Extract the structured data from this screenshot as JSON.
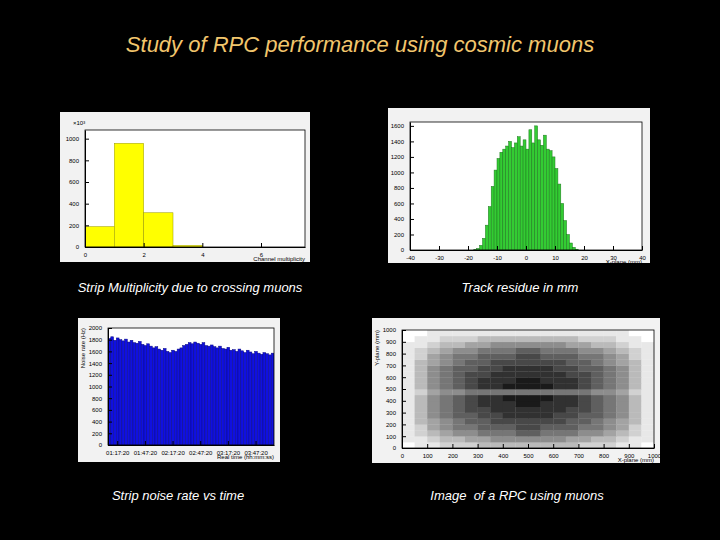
{
  "title": "Study of RPC performance using cosmic muons",
  "chart_data": [
    {
      "type": "histogram",
      "title": "Strip Multiplicity due to crossing muons",
      "xlabel": "Channel multiplicity",
      "annotations": [
        "×10³"
      ],
      "bins": [
        0,
        1,
        2,
        3,
        4,
        5,
        6,
        7
      ],
      "values": [
        188,
        957,
        316,
        15,
        0,
        0,
        0
      ],
      "color": "#ffff00",
      "xlim": [
        0,
        7.5
      ],
      "ylim": [
        0,
        1080
      ],
      "xticks": [
        0,
        2,
        4,
        6
      ],
      "yticks": [
        0,
        200,
        400,
        600,
        800,
        1000
      ]
    },
    {
      "type": "histogram",
      "title": "Track residue in mm",
      "xlabel": "X-plane (mm)",
      "bins": [
        -18,
        -17,
        -16,
        -15,
        -14,
        -13,
        -12,
        -11,
        -10,
        -9,
        -8,
        -7,
        -6,
        -5,
        -4,
        -3,
        -2,
        -1,
        0,
        1,
        2,
        3,
        4,
        5,
        6,
        7,
        8,
        9,
        10,
        11,
        12,
        13,
        14,
        15,
        16,
        17,
        18
      ],
      "values": [
        5,
        20,
        60,
        150,
        320,
        560,
        820,
        1030,
        1180,
        1260,
        1300,
        1340,
        1400,
        1320,
        1380,
        1460,
        1340,
        1420,
        1300,
        1550,
        1380,
        1600,
        1420,
        1350,
        1480,
        1300,
        1280,
        1200,
        1050,
        850,
        600,
        380,
        200,
        90,
        35,
        10
      ],
      "color": "#33cc33",
      "xlim": [
        -40,
        40
      ],
      "ylim": [
        0,
        1650
      ],
      "xticks": [
        -40,
        -30,
        -20,
        -10,
        0,
        10,
        20,
        30,
        40
      ],
      "yticks": [
        0,
        200,
        400,
        600,
        800,
        1000,
        1200,
        1400,
        1600
      ]
    },
    {
      "type": "histogram",
      "title": "Strip noise rate vs time",
      "xlabel": "Real time (hh:mm:ss)",
      "ylabel": "Noise rate (Hz)",
      "bins": [
        0,
        3,
        6,
        9,
        12,
        15,
        18,
        21,
        24,
        27,
        30,
        33,
        36,
        39,
        42,
        45,
        48,
        51,
        54,
        57,
        60,
        63,
        66,
        69,
        72,
        75,
        78,
        81,
        84,
        87,
        90,
        93,
        96,
        99,
        102,
        105,
        108,
        111,
        114,
        117,
        120,
        123,
        126,
        129,
        132,
        135,
        138,
        141,
        144,
        147,
        150,
        153,
        156,
        159,
        162,
        165,
        168,
        171,
        174,
        177,
        180
      ],
      "values": [
        1820,
        1850,
        1790,
        1830,
        1800,
        1780,
        1810,
        1760,
        1790,
        1750,
        1740,
        1770,
        1720,
        1700,
        1730,
        1690,
        1660,
        1680,
        1640,
        1620,
        1650,
        1600,
        1580,
        1620,
        1600,
        1640,
        1660,
        1700,
        1720,
        1750,
        1730,
        1760,
        1740,
        1720,
        1750,
        1700,
        1690,
        1710,
        1680,
        1660,
        1690,
        1650,
        1640,
        1670,
        1620,
        1630,
        1600,
        1640,
        1610,
        1580,
        1620,
        1590,
        1560,
        1600,
        1570,
        1550,
        1580,
        1560,
        1540,
        1570
      ],
      "color": "#1010e0",
      "xlim": [
        0,
        180
      ],
      "ylim": [
        0,
        2000
      ],
      "xticks": [
        {
          "value": 10,
          "label": "01:17:20"
        },
        {
          "value": 40,
          "label": "01:47:20"
        },
        {
          "value": 70,
          "label": "02:17:20"
        },
        {
          "value": 100,
          "label": "02:47:20"
        },
        {
          "value": 130,
          "label": "03:17:20"
        },
        {
          "value": 160,
          "label": "03:47:20"
        }
      ],
      "yticks": [
        0,
        200,
        400,
        600,
        800,
        1000,
        1200,
        1400,
        1600,
        1800,
        2000
      ]
    },
    {
      "type": "heatmap",
      "title": "Image  of a RPC using muons",
      "xlabel": "X-plane (mm)",
      "ylabel": "Y-plane (mm)",
      "color": "#1a1a1a",
      "xlim": [
        0,
        1000
      ],
      "ylim": [
        0,
        1000
      ],
      "xticks": [
        0,
        100,
        200,
        300,
        400,
        500,
        600,
        700,
        800,
        900,
        1000
      ],
      "yticks": [
        0,
        100,
        200,
        300,
        400,
        500,
        600,
        700,
        800,
        900,
        1000
      ],
      "cells": [
        [
          0,
          1,
          1,
          2,
          2,
          2,
          3,
          3,
          3,
          3,
          3,
          3,
          3,
          3,
          2,
          2,
          2,
          1,
          1,
          0
        ],
        [
          1,
          1,
          2,
          3,
          3,
          4,
          4,
          5,
          5,
          5,
          5,
          5,
          5,
          4,
          4,
          3,
          3,
          2,
          1,
          1
        ],
        [
          1,
          2,
          3,
          4,
          5,
          5,
          6,
          6,
          6,
          7,
          7,
          6,
          6,
          6,
          5,
          5,
          4,
          3,
          2,
          1
        ],
        [
          1,
          2,
          4,
          5,
          6,
          6,
          7,
          7,
          7,
          8,
          8,
          7,
          7,
          7,
          6,
          6,
          5,
          4,
          2,
          1
        ],
        [
          1,
          3,
          4,
          5,
          6,
          7,
          7,
          8,
          8,
          8,
          8,
          8,
          8,
          7,
          7,
          6,
          5,
          4,
          3,
          1
        ],
        [
          1,
          3,
          5,
          6,
          7,
          7,
          8,
          8,
          9,
          9,
          9,
          9,
          8,
          8,
          7,
          7,
          6,
          5,
          3,
          1
        ],
        [
          1,
          3,
          5,
          6,
          7,
          8,
          8,
          9,
          9,
          9,
          9,
          9,
          9,
          8,
          8,
          7,
          6,
          5,
          3,
          1
        ],
        [
          1,
          3,
          5,
          6,
          7,
          8,
          9,
          9,
          9,
          10,
          10,
          9,
          9,
          9,
          8,
          7,
          6,
          5,
          3,
          1
        ],
        [
          1,
          3,
          5,
          6,
          7,
          8,
          9,
          9,
          10,
          10,
          10,
          10,
          9,
          9,
          8,
          7,
          6,
          5,
          3,
          1
        ],
        [
          1,
          2,
          4,
          5,
          5,
          6,
          6,
          6,
          6,
          6,
          6,
          6,
          6,
          6,
          6,
          5,
          5,
          4,
          2,
          1
        ],
        [
          1,
          3,
          5,
          6,
          7,
          8,
          9,
          9,
          10,
          10,
          10,
          10,
          9,
          9,
          8,
          7,
          6,
          5,
          3,
          1
        ],
        [
          1,
          3,
          5,
          6,
          7,
          8,
          9,
          9,
          9,
          10,
          10,
          9,
          9,
          9,
          8,
          7,
          6,
          5,
          3,
          1
        ],
        [
          1,
          3,
          5,
          6,
          7,
          8,
          8,
          9,
          9,
          9,
          9,
          9,
          9,
          8,
          8,
          7,
          6,
          5,
          3,
          1
        ],
        [
          1,
          3,
          5,
          6,
          7,
          7,
          8,
          8,
          9,
          9,
          9,
          9,
          8,
          8,
          7,
          7,
          6,
          5,
          3,
          1
        ],
        [
          1,
          3,
          4,
          5,
          6,
          7,
          7,
          8,
          8,
          8,
          8,
          8,
          8,
          7,
          7,
          6,
          5,
          4,
          3,
          1
        ],
        [
          1,
          2,
          4,
          5,
          6,
          6,
          7,
          7,
          7,
          8,
          8,
          7,
          7,
          7,
          6,
          6,
          5,
          4,
          2,
          1
        ],
        [
          1,
          2,
          3,
          4,
          5,
          5,
          6,
          6,
          6,
          7,
          7,
          6,
          6,
          6,
          5,
          5,
          4,
          3,
          2,
          1
        ],
        [
          1,
          1,
          2,
          3,
          3,
          4,
          4,
          5,
          5,
          5,
          5,
          5,
          5,
          4,
          4,
          3,
          3,
          2,
          1,
          1
        ],
        [
          0,
          1,
          1,
          2,
          2,
          2,
          3,
          3,
          3,
          3,
          3,
          3,
          3,
          3,
          2,
          2,
          2,
          1,
          1,
          0
        ],
        [
          0,
          0,
          1,
          1,
          1,
          1,
          1,
          1,
          1,
          1,
          1,
          1,
          1,
          1,
          1,
          1,
          1,
          1,
          0,
          0
        ]
      ]
    }
  ]
}
